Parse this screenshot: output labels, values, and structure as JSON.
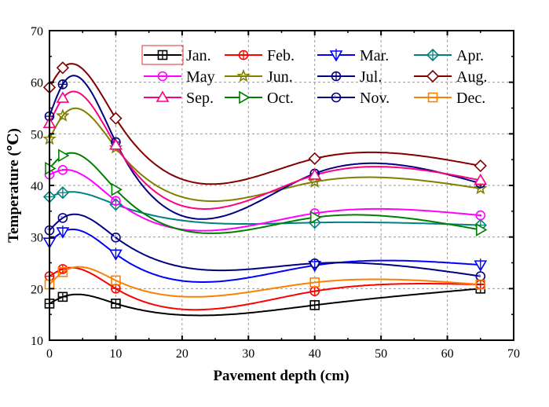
{
  "chart_data": {
    "type": "line",
    "title": "",
    "xlabel": "Pavement depth (cm)",
    "ylabel": "Temperature (℃)",
    "xlim": [
      0,
      70
    ],
    "ylim": [
      10,
      70
    ],
    "xticks": [
      0,
      10,
      20,
      30,
      40,
      50,
      60,
      70
    ],
    "yticks": [
      10,
      20,
      30,
      40,
      50,
      60,
      70
    ],
    "grid": true,
    "legend_placement": "top-right",
    "x": [
      0,
      2,
      10,
      40,
      65
    ],
    "series": [
      {
        "name": "Jan.",
        "color": "#000000",
        "marker": "square-cross",
        "values": [
          17.1,
          18.4,
          17.1,
          16.8,
          20.0
        ]
      },
      {
        "name": "Feb.",
        "color": "#ff0000",
        "marker": "circle-cross",
        "values": [
          22.4,
          23.8,
          20.0,
          19.5,
          20.8
        ]
      },
      {
        "name": "Mar.",
        "color": "#0000ff",
        "marker": "triangle-down-bar",
        "values": [
          29.0,
          31.0,
          26.7,
          24.5,
          24.6
        ]
      },
      {
        "name": "Apr.",
        "color": "#008080",
        "marker": "diamond-cross",
        "values": [
          37.8,
          38.6,
          36.3,
          32.8,
          32.3
        ]
      },
      {
        "name": "May",
        "color": "#ff00ff",
        "marker": "circle-dot",
        "values": [
          42.1,
          43.0,
          37.0,
          34.6,
          34.2
        ]
      },
      {
        "name": "Jun.",
        "color": "#808000",
        "marker": "star",
        "values": [
          49.0,
          53.5,
          47.3,
          40.7,
          39.4
        ]
      },
      {
        "name": "Jul.",
        "color": "#000080",
        "marker": "circle-cross",
        "values": [
          53.4,
          59.6,
          48.4,
          42.3,
          40.4
        ]
      },
      {
        "name": "Aug.",
        "color": "#800000",
        "marker": "diamond",
        "values": [
          59.0,
          62.8,
          53.0,
          45.2,
          43.8
        ]
      },
      {
        "name": "Sep.",
        "color": "#ff0080",
        "marker": "triangle-up",
        "values": [
          52.0,
          56.9,
          47.8,
          42.0,
          41.0
        ]
      },
      {
        "name": "Oct.",
        "color": "#008000",
        "marker": "triangle-right",
        "values": [
          43.3,
          45.8,
          39.2,
          33.8,
          31.4
        ]
      },
      {
        "name": "Nov.",
        "color": "#000080",
        "marker": "circle-filled",
        "values": [
          31.3,
          33.7,
          29.9,
          24.9,
          22.4
        ]
      },
      {
        "name": "Dec.",
        "color": "#ff8000",
        "marker": "square",
        "values": [
          20.8,
          23.2,
          21.6,
          21.2,
          20.8
        ]
      }
    ]
  }
}
